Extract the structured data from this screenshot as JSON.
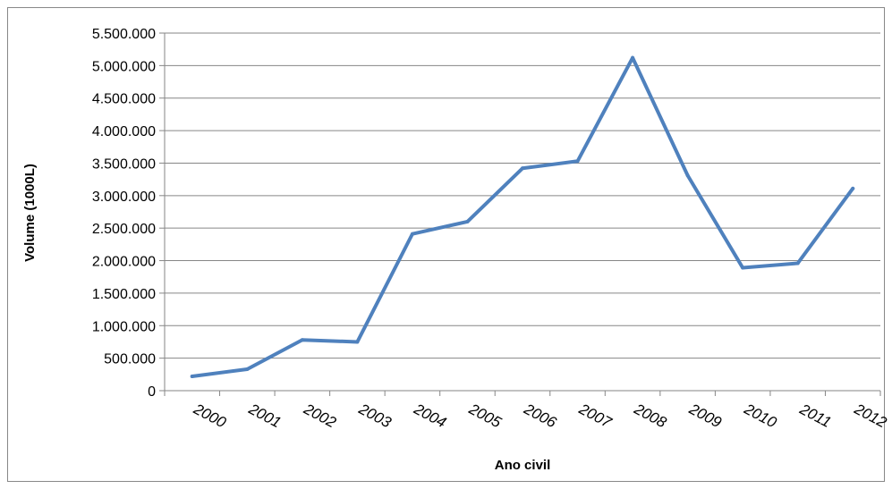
{
  "chart_data": {
    "type": "line",
    "title": "",
    "xlabel": "Ano civil",
    "ylabel": "Volume (1000L)",
    "categories": [
      "2000",
      "2001",
      "2002",
      "2003",
      "2004",
      "2005",
      "2006",
      "2007",
      "2008",
      "2009",
      "2010",
      "2011",
      "2012"
    ],
    "series": [
      {
        "values": [
          220000,
          330000,
          780000,
          750000,
          2410000,
          2600000,
          3420000,
          3530000,
          5120000,
          3310000,
          1890000,
          1960000,
          3110000
        ],
        "color": "#4F81BD"
      }
    ],
    "ylim": [
      0,
      5500000
    ],
    "yticks": [
      0,
      500000,
      1000000,
      1500000,
      2000000,
      2500000,
      3000000,
      3500000,
      4000000,
      4500000,
      5000000,
      5500000
    ],
    "ytick_labels": [
      "0",
      "500.000",
      "1.000.000",
      "1.500.000",
      "2.000.000",
      "2.500.000",
      "3.000.000",
      "3.500.000",
      "4.000.000",
      "4.500.000",
      "5.000.000",
      "5.500.000"
    ],
    "grid": true,
    "legend": "none"
  }
}
